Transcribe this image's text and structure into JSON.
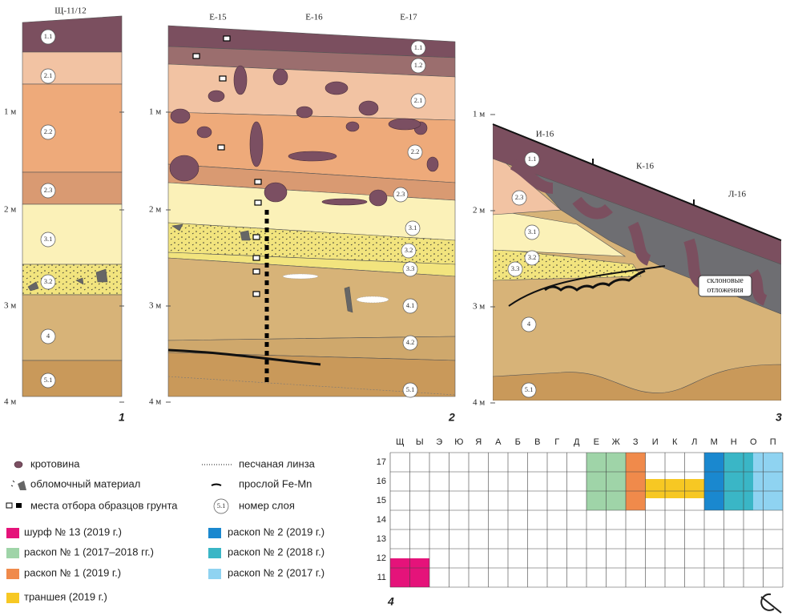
{
  "panels": [
    {
      "number": "1",
      "squares": [
        "Щ-11/12"
      ],
      "depth_labels": [
        "1 м",
        "2 м",
        "3 м",
        "4 м"
      ],
      "layers": [
        "1.1",
        "2.1",
        "2.2",
        "2.3",
        "3.1",
        "3.2",
        "4",
        "5.1"
      ]
    },
    {
      "number": "2",
      "squares": [
        "Е-15",
        "Е-16",
        "Е-17"
      ],
      "depth_labels": [
        "1 м",
        "2 м",
        "3 м",
        "4 м"
      ],
      "layers": [
        "1.1",
        "1.2",
        "2.1",
        "2.2",
        "2.3",
        "3.1",
        "3.2",
        "3.3",
        "4.1",
        "4.2",
        "5.1"
      ]
    },
    {
      "number": "3",
      "squares": [
        "И-16",
        "К-16",
        "Л-16"
      ],
      "depth_labels": [
        "1 м",
        "2 м",
        "3 м",
        "4 м"
      ],
      "layers": [
        "1.1",
        "2.3",
        "3.1",
        "3.2",
        "3.3",
        "4",
        "5.1"
      ],
      "note": "склоновые отложения"
    }
  ],
  "legend": {
    "symbols": [
      "кротовина",
      "обломочный материал",
      "места отбора образцов грунта",
      "песчаная линза",
      "прослой Fe-Mn",
      "номер слоя"
    ],
    "symbol_sample": "5.1",
    "areas": [
      "шурф № 13 (2019 г.)",
      "раскоп № 1 (2017–2018 гг.)",
      "раскоп № 1 (2019 г.)",
      "траншея (2019 г.)",
      "раскоп № 2 (2019 г.)",
      "раскоп № 2 (2018 г.)",
      "раскоп № 2 (2017 г.)"
    ]
  },
  "grid": {
    "number": "4",
    "columns": [
      "Щ",
      "Ы",
      "Э",
      "Ю",
      "Я",
      "А",
      "Б",
      "В",
      "Г",
      "Д",
      "Е",
      "Ж",
      "З",
      "И",
      "К",
      "Л",
      "М",
      "Н",
      "О",
      "П"
    ],
    "rows": [
      "17",
      "16",
      "15",
      "14",
      "13",
      "12",
      "11"
    ]
  }
}
